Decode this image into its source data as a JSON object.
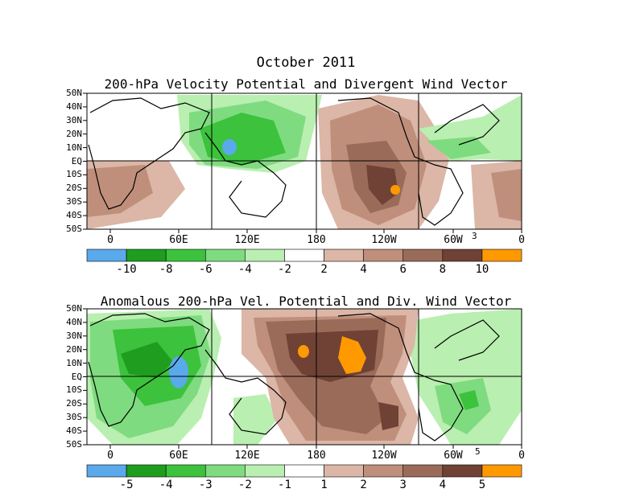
{
  "figure_title": "October 2011",
  "colors": {
    "blue": "#5aa9ea",
    "dark_green": "#1e9d1e",
    "green": "#3cc23c",
    "light_green": "#7fdb7f",
    "pale_green": "#b9efb0",
    "white": "#ffffff",
    "pale_brown": "#dcb6a6",
    "light_brown": "#bf8f7c",
    "brown": "#9b6b5a",
    "dark_brown": "#6f4235",
    "orange": "#ff9900"
  },
  "lat_labels": [
    "50N",
    "40N",
    "30N",
    "20N",
    "10N",
    "EQ",
    "10S",
    "20S",
    "30S",
    "40S",
    "50S"
  ],
  "lon_labels": [
    "0",
    "60E",
    "120E",
    "180",
    "120W",
    "60W",
    "0"
  ],
  "panel1": {
    "title": "200-hPa Velocity Potential and Divergent Wind Vector",
    "vector_scale": "3",
    "colorbar_labels": [
      "-10",
      "-8",
      "-6",
      "-4",
      "-2",
      "2",
      "4",
      "6",
      "8",
      "10"
    ]
  },
  "panel2": {
    "title": "Anomalous 200-hPa Vel. Potential and Div. Wind Vector",
    "vector_scale": "5",
    "colorbar_labels": [
      "-5",
      "-4",
      "-3",
      "-2",
      "-1",
      "1",
      "2",
      "3",
      "4",
      "5"
    ]
  }
}
